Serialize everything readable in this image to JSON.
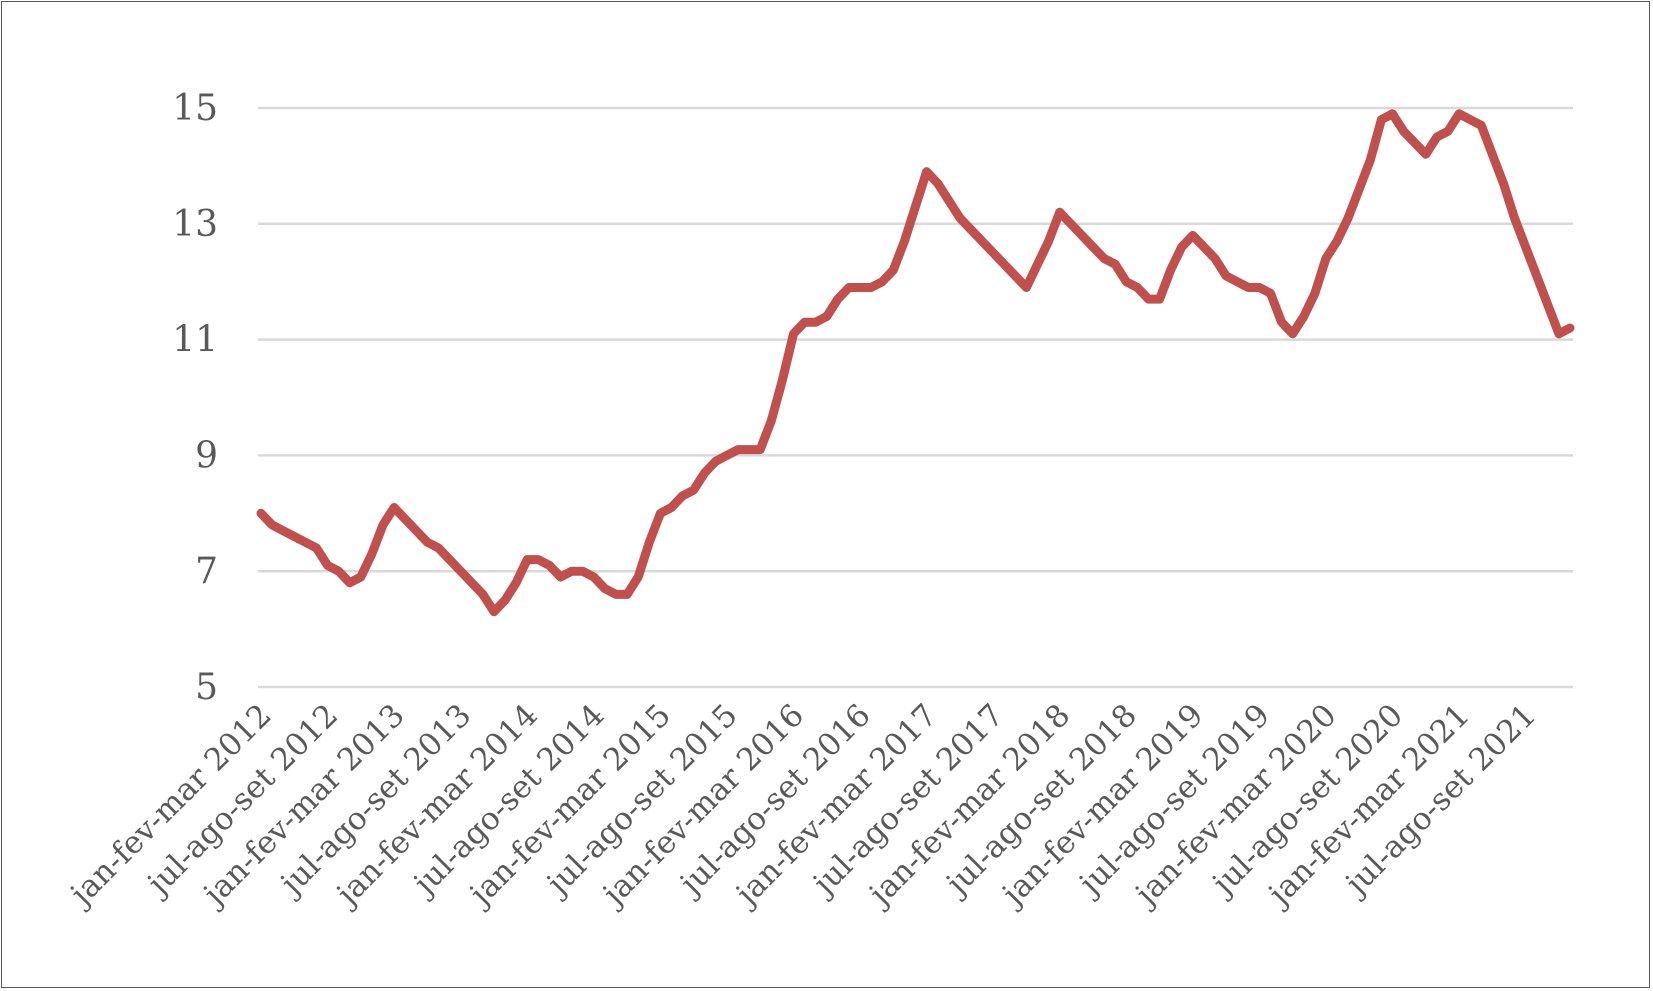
{
  "chart_data": {
    "type": "line",
    "title": "",
    "xlabel": "",
    "ylabel": "",
    "ylim": [
      5,
      15
    ],
    "yticks": [
      5,
      7,
      9,
      11,
      13,
      15
    ],
    "grid": true,
    "legend": "none",
    "colors": {
      "series": "#c0504d",
      "grid": "#d9d9d9",
      "text": "#595959"
    },
    "x_tick_labels": [
      "jan-fev-mar 2012",
      "jul-ago-set 2012",
      "jan-fev-mar 2013",
      "jul-ago-set 2013",
      "jan-fev-mar 2014",
      "jul-ago-set 2014",
      "jan-fev-mar 2015",
      "jul-ago-set 2015",
      "jan-fev-mar 2016",
      "jul-ago-set 2016",
      "jan-fev-mar 2017",
      "jul-ago-set 2017",
      "jan-fev-mar 2018",
      "jul-ago-set 2018",
      "jan-fev-mar 2019",
      "jul-ago-set 2019",
      "jan-fev-mar 2020",
      "jul-ago-set 2020",
      "jan-fev-mar 2021",
      "jul-ago-set 2021"
    ],
    "x_tick_every": 6,
    "series": [
      {
        "values": [
          8.0,
          7.8,
          7.7,
          7.6,
          7.5,
          7.4,
          7.1,
          7.0,
          6.8,
          6.9,
          7.3,
          7.8,
          8.1,
          7.9,
          7.7,
          7.5,
          7.4,
          7.2,
          7.0,
          6.8,
          6.6,
          6.3,
          6.5,
          6.8,
          7.2,
          7.2,
          7.1,
          6.9,
          7.0,
          7.0,
          6.9,
          6.7,
          6.6,
          6.6,
          6.9,
          7.5,
          8.0,
          8.1,
          8.3,
          8.4,
          8.7,
          8.9,
          9.0,
          9.1,
          9.1,
          9.1,
          9.6,
          10.3,
          11.1,
          11.3,
          11.3,
          11.4,
          11.7,
          11.9,
          11.9,
          11.9,
          12.0,
          12.2,
          12.7,
          13.3,
          13.9,
          13.7,
          13.4,
          13.1,
          12.9,
          12.7,
          12.5,
          12.3,
          12.1,
          11.9,
          12.3,
          12.7,
          13.2,
          13.0,
          12.8,
          12.6,
          12.4,
          12.3,
          12.0,
          11.9,
          11.7,
          11.7,
          12.2,
          12.6,
          12.8,
          12.6,
          12.4,
          12.1,
          12.0,
          11.9,
          11.9,
          11.8,
          11.3,
          11.1,
          11.4,
          11.8,
          12.4,
          12.7,
          13.1,
          13.6,
          14.1,
          14.8,
          14.9,
          14.6,
          14.4,
          14.2,
          14.5,
          14.6,
          14.9,
          14.8,
          14.7,
          14.2,
          13.7,
          13.1,
          12.6,
          12.1,
          11.6,
          11.1,
          11.2
        ]
      }
    ]
  }
}
